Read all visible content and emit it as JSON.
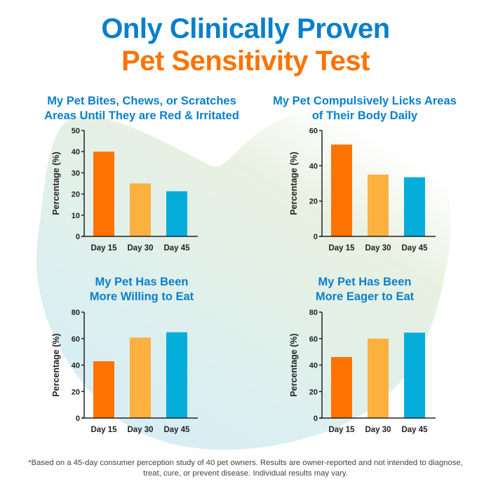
{
  "header": {
    "line1": "Only Clinically Proven",
    "line2": "Pet Sensitivity Test"
  },
  "colors": {
    "title_blue": "#0A7FCC",
    "title_orange": "#FF7300",
    "bar_day15": "#FF7300",
    "bar_day30": "#FBB040",
    "bar_day45": "#05ADDB",
    "axis": "#222222",
    "blob_green": "#E8F1E1",
    "blob_blue": "#D6EEF6"
  },
  "footnote": "*Based on a 45-day consumer perception study of 40 pet owners. Results are owner-reported and not intended to diagnose, treat, cure, or prevent disease. Individual results may vary.",
  "chart_data": [
    {
      "type": "bar",
      "title": "My Pet Bites, Chews, or Scratches Areas Until They are Red & Irritated",
      "title_lines": [
        "My Pet Bites, Chews, or Scratches",
        "Areas Until They are Red & Irritated"
      ],
      "categories": [
        "Day 15",
        "Day 30",
        "Day 45"
      ],
      "values": [
        40,
        25,
        21.3
      ],
      "xlabel": "",
      "ylabel": "Percentage (%)",
      "ylim": [
        0,
        50
      ],
      "yticks": [
        0,
        10,
        20,
        30,
        40,
        50
      ],
      "grid": false,
      "legend": "none"
    },
    {
      "type": "bar",
      "title": "My Pet Compulsively Licks Areas of Their Body Daily",
      "title_lines": [
        "My Pet Compulsively Licks Areas",
        "of Their Body Daily"
      ],
      "categories": [
        "Day 15",
        "Day 30",
        "Day 45"
      ],
      "values": [
        52,
        35,
        33.5
      ],
      "xlabel": "",
      "ylabel": "Percentage (%)",
      "ylim": [
        0,
        60
      ],
      "yticks": [
        0,
        20,
        40,
        60
      ],
      "grid": false,
      "legend": "none"
    },
    {
      "type": "bar",
      "title": "My Pet Has Been More Willing to Eat",
      "title_lines": [
        "My Pet Has Been",
        "More Willing to Eat"
      ],
      "categories": [
        "Day 15",
        "Day 30",
        "Day 45"
      ],
      "values": [
        42.9,
        60.8,
        64.8
      ],
      "xlabel": "",
      "ylabel": "Percentage (%)",
      "ylim": [
        0,
        80
      ],
      "yticks": [
        0,
        20,
        40,
        60,
        80
      ],
      "grid": false,
      "legend": "none"
    },
    {
      "type": "bar",
      "title": "My Pet Has Been More Eager to Eat",
      "title_lines": [
        "My Pet Has Been",
        "More Eager to Eat"
      ],
      "categories": [
        "Day 15",
        "Day 30",
        "Day 45"
      ],
      "values": [
        46.1,
        60.0,
        64.5
      ],
      "xlabel": "",
      "ylabel": "Percentage (%)",
      "ylim": [
        0,
        80
      ],
      "yticks": [
        0,
        20,
        40,
        60,
        80
      ],
      "grid": false,
      "legend": "none"
    }
  ]
}
